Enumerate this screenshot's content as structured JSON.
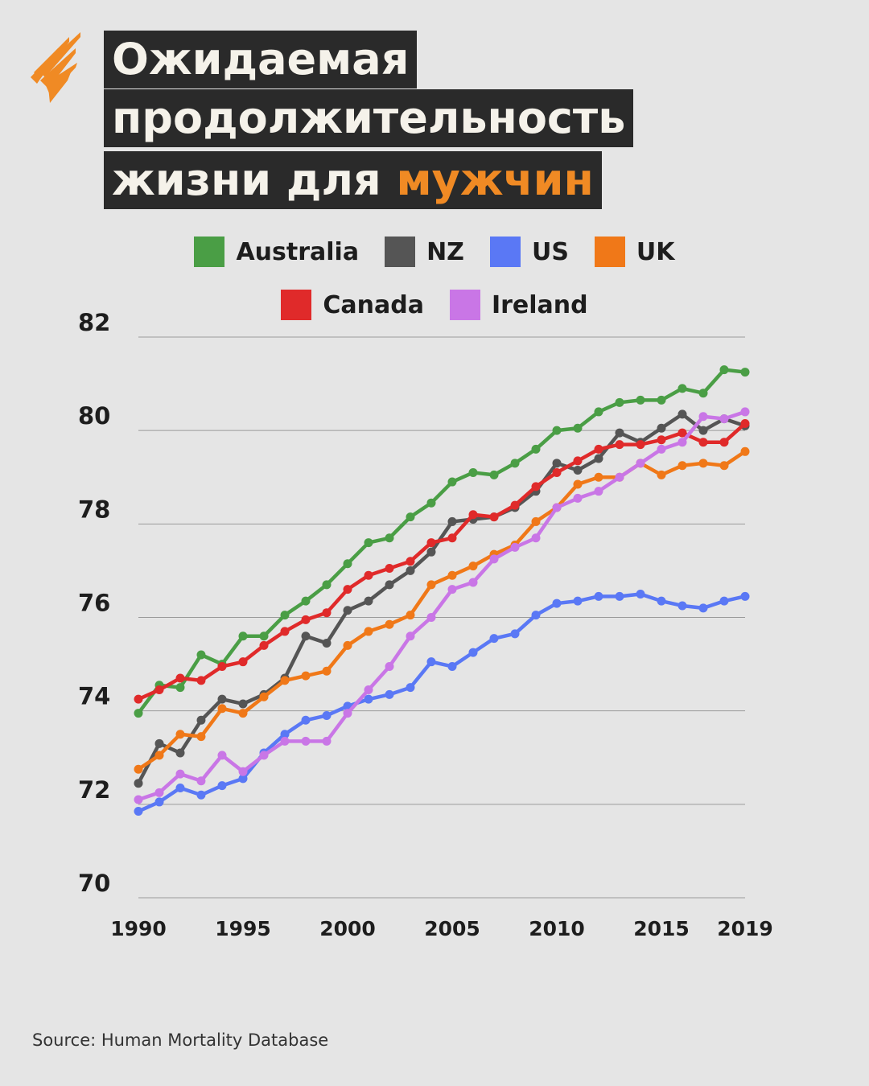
{
  "header": {
    "title_line1": "Ожидаемая",
    "title_line2": "продолжительность",
    "title_line3_prefix": "жизни для ",
    "title_line3_accent": "мужчин"
  },
  "colors": {
    "accent": "#f08a24",
    "title_background": "#2a2a2a",
    "title_text": "#f5f2ea",
    "background": "#e5e5e5"
  },
  "logo": {
    "icon": "sbs-sunburst-icon",
    "color": "#f08a24"
  },
  "legend": [
    {
      "label": "Australia",
      "color": "#4a9e45"
    },
    {
      "label": "NZ",
      "color": "#555555"
    },
    {
      "label": "US",
      "color": "#5a78f5"
    },
    {
      "label": "UK",
      "color": "#f07818"
    },
    {
      "label": "Canada",
      "color": "#e02a2a"
    },
    {
      "label": "Ireland",
      "color": "#c976e6"
    }
  ],
  "chart_data": {
    "type": "line",
    "xlabel": "",
    "ylabel": "",
    "xlim": [
      1990,
      2019
    ],
    "ylim": [
      70,
      82
    ],
    "x_ticks": [
      1990,
      1995,
      2000,
      2005,
      2010,
      2015,
      2019
    ],
    "y_ticks": [
      82,
      80,
      78,
      76,
      74,
      72,
      70
    ],
    "grid": true,
    "legend_position": "top",
    "x": [
      1990,
      1991,
      1992,
      1993,
      1994,
      1995,
      1996,
      1997,
      1998,
      1999,
      2000,
      2001,
      2002,
      2003,
      2004,
      2005,
      2006,
      2007,
      2008,
      2009,
      2010,
      2011,
      2012,
      2013,
      2014,
      2015,
      2016,
      2017,
      2018,
      2019
    ],
    "series": [
      {
        "name": "Australia",
        "color": "#4a9e45",
        "values": [
          73.95,
          74.55,
          74.5,
          75.2,
          75.0,
          75.6,
          75.6,
          76.05,
          76.35,
          76.7,
          77.15,
          77.6,
          77.7,
          78.15,
          78.45,
          78.9,
          79.1,
          79.05,
          79.3,
          79.6,
          80.0,
          80.05,
          80.4,
          80.6,
          80.65,
          80.65,
          80.9,
          80.8,
          81.3,
          81.25
        ]
      },
      {
        "name": "NZ",
        "color": "#555555",
        "values": [
          72.45,
          73.3,
          73.1,
          73.8,
          74.25,
          74.15,
          74.35,
          74.7,
          75.6,
          75.45,
          76.15,
          76.35,
          76.7,
          77.0,
          77.4,
          78.05,
          78.1,
          78.15,
          78.35,
          78.7,
          79.3,
          79.15,
          79.4,
          79.95,
          79.75,
          80.05,
          80.35,
          80.0,
          80.25,
          80.1
        ]
      },
      {
        "name": "US",
        "color": "#5a78f5",
        "values": [
          71.85,
          72.05,
          72.35,
          72.2,
          72.4,
          72.55,
          73.1,
          73.5,
          73.8,
          73.9,
          74.1,
          74.25,
          74.35,
          74.5,
          75.05,
          74.95,
          75.25,
          75.55,
          75.65,
          76.05,
          76.3,
          76.35,
          76.45,
          76.45,
          76.5,
          76.35,
          76.25,
          76.2,
          76.35,
          76.45
        ]
      },
      {
        "name": "UK",
        "color": "#f07818",
        "values": [
          72.75,
          73.05,
          73.5,
          73.45,
          74.05,
          73.95,
          74.3,
          74.65,
          74.75,
          74.85,
          75.4,
          75.7,
          75.85,
          76.05,
          76.7,
          76.9,
          77.1,
          77.35,
          77.55,
          78.05,
          78.35,
          78.85,
          79.0,
          79.0,
          79.3,
          79.05,
          79.25,
          79.3,
          79.25,
          79.55
        ]
      },
      {
        "name": "Canada",
        "color": "#e02a2a",
        "values": [
          74.25,
          74.45,
          74.7,
          74.65,
          74.95,
          75.05,
          75.4,
          75.7,
          75.95,
          76.1,
          76.6,
          76.9,
          77.05,
          77.2,
          77.6,
          77.7,
          78.2,
          78.15,
          78.4,
          78.8,
          79.1,
          79.35,
          79.6,
          79.7,
          79.7,
          79.8,
          79.95,
          79.75,
          79.75,
          80.15
        ]
      },
      {
        "name": "Ireland",
        "color": "#c976e6",
        "values": [
          72.1,
          72.25,
          72.65,
          72.5,
          73.05,
          72.7,
          73.05,
          73.35,
          73.35,
          73.35,
          73.95,
          74.45,
          74.95,
          75.6,
          76.0,
          76.6,
          76.75,
          77.25,
          77.5,
          77.7,
          78.35,
          78.55,
          78.7,
          79.0,
          79.3,
          79.6,
          79.75,
          80.3,
          80.25,
          80.4
        ]
      }
    ]
  },
  "footer": {
    "source": "Source: Human Mortality Database"
  }
}
